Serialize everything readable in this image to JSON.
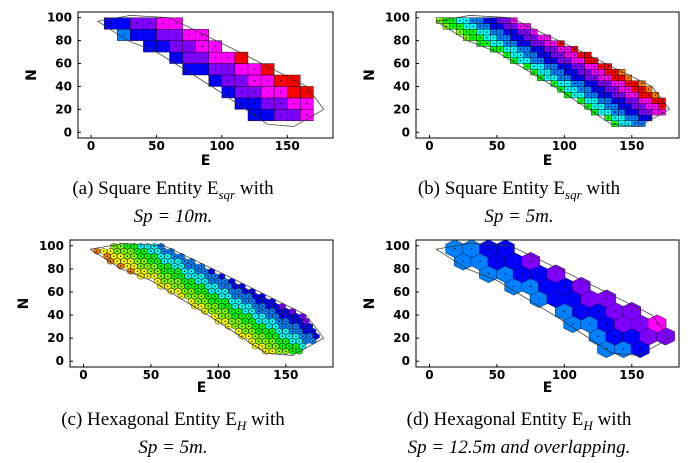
{
  "panels": [
    {
      "id": "a",
      "caption_line1": "(a) Square Entity E",
      "caption_sub": "sqr",
      "caption_line1_tail": " with",
      "caption_line2": "Sp = 10m.",
      "shape": "square",
      "spacing": 10,
      "x_label": "E",
      "y_label": "N",
      "x_ticks": [
        "0",
        "50",
        "100",
        "150"
      ],
      "y_ticks": [
        "0",
        "20",
        "40",
        "60",
        "80",
        "100"
      ]
    },
    {
      "id": "b",
      "caption_line1": "(b) Square Entity E",
      "caption_sub": "sqr",
      "caption_line1_tail": " with",
      "caption_line2": "Sp = 5m.",
      "shape": "square",
      "spacing": 5,
      "x_label": "E",
      "y_label": "N",
      "x_ticks": [
        "0",
        "50",
        "100",
        "150"
      ],
      "y_ticks": [
        "0",
        "20",
        "40",
        "60",
        "80",
        "100"
      ]
    },
    {
      "id": "c",
      "caption_line1": "(c) Hexagonal Entity E",
      "caption_sub": "H",
      "caption_line1_tail": " with",
      "caption_line2": "Sp = 5m.",
      "shape": "hex",
      "spacing": 5,
      "x_label": "E",
      "y_label": "N",
      "x_ticks": [
        "0",
        "50",
        "100",
        "150"
      ],
      "y_ticks": [
        "0",
        "20",
        "40",
        "60",
        "80",
        "100"
      ]
    },
    {
      "id": "d",
      "caption_line1": "(d) Hexagonal Entity E",
      "caption_sub": "H",
      "caption_line1_tail": " with",
      "caption_line2": "Sp = 12.5m and overlapping.",
      "shape": "hex",
      "spacing": 12.5,
      "x_label": "E",
      "y_label": "N",
      "x_ticks": [
        "0",
        "50",
        "100",
        "150"
      ],
      "y_ticks": [
        "0",
        "20",
        "40",
        "60",
        "80",
        "100"
      ]
    }
  ],
  "palette": [
    "#ff0000",
    "#ff8000",
    "#ffff00",
    "#80ff00",
    "#00ff00",
    "#00ffff",
    "#0080ff",
    "#0000ff",
    "#8000ff",
    "#ff00ff"
  ]
}
